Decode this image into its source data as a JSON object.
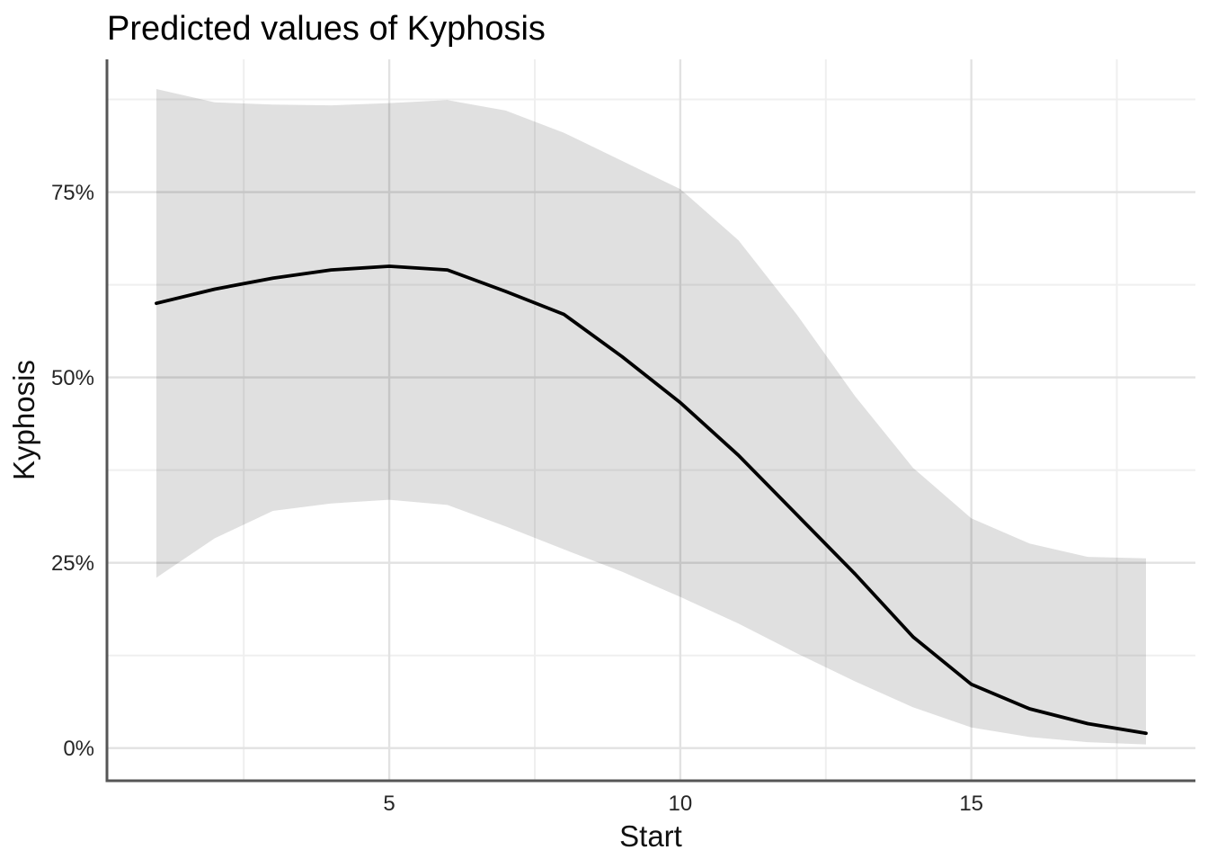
{
  "title": "Predicted values of Kyphosis",
  "chart_data": {
    "type": "line",
    "title": "Predicted values of Kyphosis",
    "xlabel": "Start",
    "ylabel": "Kyphosis",
    "x": [
      1,
      2,
      3,
      4,
      5,
      6,
      7,
      8,
      9,
      10,
      11,
      12,
      13,
      14,
      15,
      16,
      17,
      18
    ],
    "series": [
      {
        "name": "predicted",
        "values": [
          60.0,
          61.9,
          63.4,
          64.5,
          65.0,
          64.5,
          61.6,
          58.5,
          52.8,
          46.6,
          39.5,
          31.5,
          23.5,
          15.0,
          8.6,
          5.3,
          3.3,
          2.0
        ]
      },
      {
        "name": "conf_high",
        "values": [
          88.9,
          87.1,
          86.8,
          86.7,
          87.0,
          87.4,
          86.0,
          83.0,
          79.2,
          75.4,
          68.5,
          58.5,
          47.5,
          37.8,
          31.0,
          27.6,
          25.8,
          25.6
        ]
      },
      {
        "name": "conf_low",
        "values": [
          23.0,
          28.3,
          32.0,
          33.0,
          33.5,
          32.8,
          29.9,
          26.8,
          23.8,
          20.4,
          16.8,
          12.8,
          9.0,
          5.5,
          2.8,
          1.5,
          0.8,
          0.5
        ]
      }
    ],
    "x_ticks": {
      "values": [
        5,
        10,
        15
      ],
      "labels": [
        "5",
        "10",
        "15"
      ]
    },
    "y_ticks": {
      "values": [
        0,
        25,
        50,
        75
      ],
      "labels": [
        "0%",
        "25%",
        "50%",
        "75%"
      ]
    },
    "x_minor": [
      2.5,
      7.5,
      12.5,
      17.5
    ],
    "y_minor": [
      12.5,
      37.5,
      62.5,
      87.5
    ],
    "xlim": [
      0.15,
      18.85
    ],
    "ylim": [
      -4.4,
      92.9
    ],
    "grid": true,
    "legend": "none",
    "colors": {
      "line": "#000000",
      "ribbon": "rgba(0,0,0,0.12)",
      "grid_major": "#e2e2e2",
      "grid_minor": "#efefef",
      "axis_line": "#565656",
      "tick_text": "#262626",
      "title_text": "#000000"
    }
  }
}
